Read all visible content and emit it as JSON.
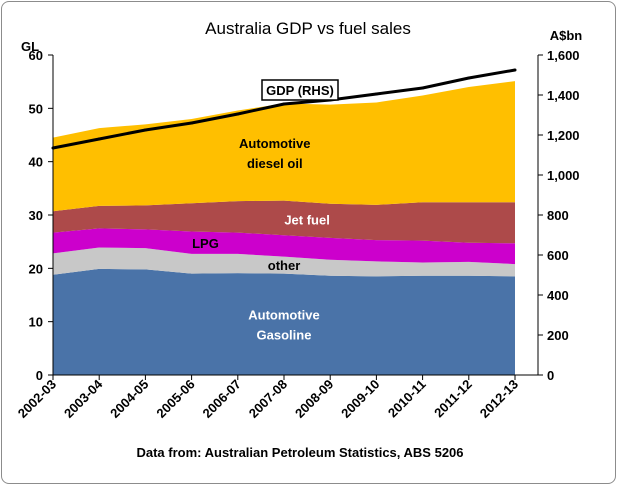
{
  "chart_data": {
    "type": "area",
    "stacked": true,
    "title": "Australia GDP vs fuel sales",
    "left_axis_label": "GL",
    "right_axis_label": "A$bn",
    "source_note": "Data from: Australian Petroleum Statistics, ABS 5206",
    "categories": [
      "2002-03",
      "2003-04",
      "2004-05",
      "2005-06",
      "2006-07",
      "2007-08",
      "2008-09",
      "2009-10",
      "2010-11",
      "2011-12",
      "2012-13"
    ],
    "ylim_left": [
      0,
      60
    ],
    "yticks_left": [
      "0",
      "10",
      "20",
      "30",
      "40",
      "50",
      "60"
    ],
    "ylim_right": [
      0,
      1600
    ],
    "yticks_right": [
      "0",
      "200",
      "400",
      "600",
      "800",
      "1,000",
      "1,200",
      "1,400",
      "1,600"
    ],
    "grid": false,
    "series": [
      {
        "name": "Automotive Gasoline",
        "label_lines": [
          "Automotive",
          "Gasoline"
        ],
        "axis": "left",
        "color": "#4a73a8",
        "values": [
          18.8,
          19.9,
          19.8,
          19.0,
          19.1,
          19.0,
          18.6,
          18.5,
          18.6,
          18.6,
          18.5
        ]
      },
      {
        "name": "other",
        "label_lines": [
          "other"
        ],
        "axis": "left",
        "color": "#c8c8c8",
        "values": [
          4.0,
          4.0,
          4.0,
          3.7,
          3.6,
          3.2,
          3.0,
          2.8,
          2.5,
          2.6,
          2.3
        ]
      },
      {
        "name": "LPG",
        "label_lines": [
          "LPG"
        ],
        "axis": "left",
        "color": "#cc00cc",
        "values": [
          3.9,
          3.6,
          3.5,
          4.2,
          4.0,
          4.0,
          4.1,
          4.0,
          4.1,
          3.6,
          3.9
        ]
      },
      {
        "name": "Jet fuel",
        "label_lines": [
          "Jet fuel"
        ],
        "axis": "left",
        "color": "#ad4a4a",
        "values": [
          4.0,
          4.2,
          4.5,
          5.3,
          5.9,
          6.5,
          6.4,
          6.6,
          7.2,
          7.6,
          7.7
        ]
      },
      {
        "name": "Automotive diesel oil",
        "label_lines": [
          "Automotive",
          "diesel oil"
        ],
        "axis": "left",
        "color": "#ffbf00",
        "values": [
          13.8,
          14.6,
          15.2,
          15.8,
          17.0,
          18.2,
          18.6,
          19.2,
          20.0,
          21.6,
          22.7
        ]
      },
      {
        "name": "GDP (RHS)",
        "label_lines": [
          "GDP (RHS)"
        ],
        "axis": "right",
        "type": "line",
        "color": "#000000",
        "values": [
          1135,
          1180,
          1225,
          1260,
          1305,
          1355,
          1375,
          1405,
          1435,
          1485,
          1525
        ]
      }
    ]
  }
}
